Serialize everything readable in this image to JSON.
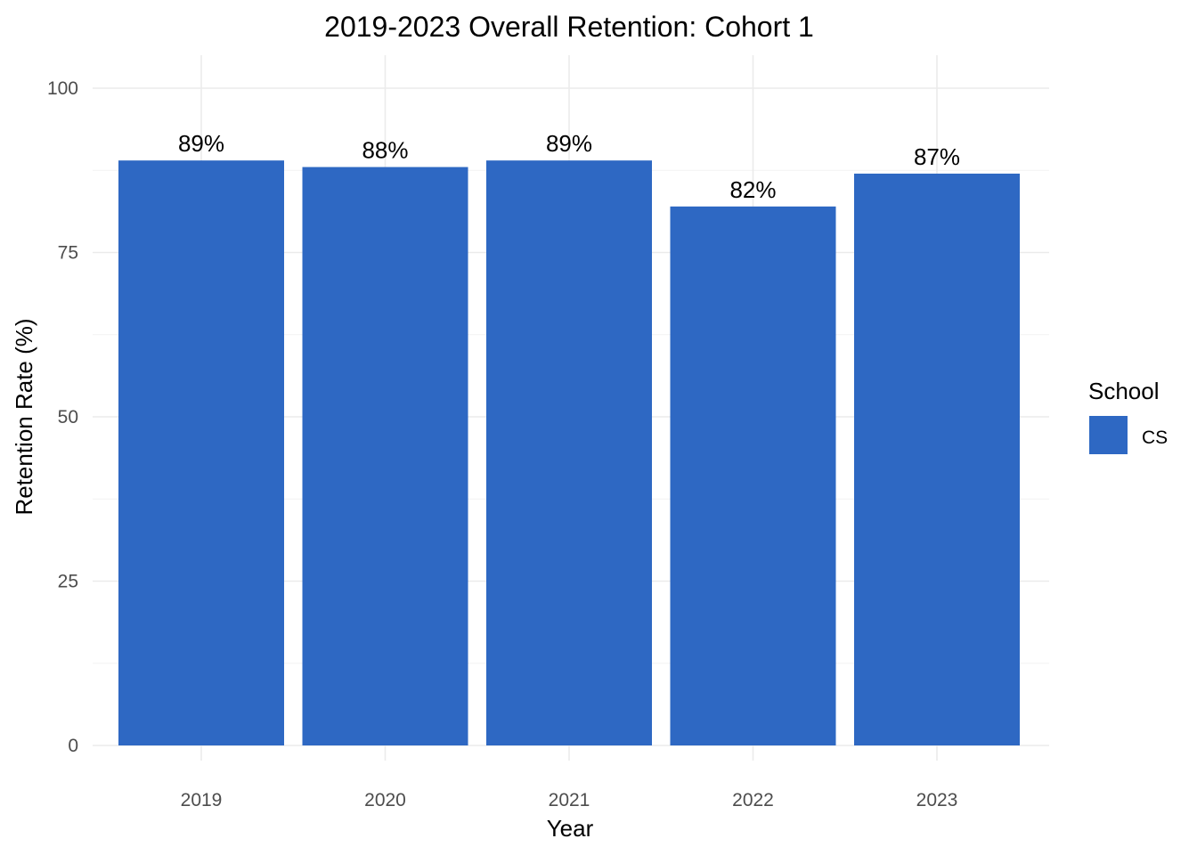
{
  "chart_data": {
    "type": "bar",
    "title": "2019-2023 Overall Retention: Cohort 1",
    "xlabel": "Year",
    "ylabel": "Retention Rate (%)",
    "categories": [
      "2019",
      "2020",
      "2021",
      "2022",
      "2023"
    ],
    "series": [
      {
        "name": "CS",
        "values": [
          89,
          88,
          89,
          82,
          87
        ],
        "data_labels": [
          "89%",
          "88%",
          "89%",
          "82%",
          "87%"
        ],
        "color": "#2E68C3"
      }
    ],
    "ylim": [
      0,
      100
    ],
    "yticks": [
      0,
      25,
      50,
      75,
      100
    ],
    "ytick_labels": [
      "0",
      "25",
      "50",
      "75",
      "100"
    ],
    "grid": true,
    "legend": {
      "title": "School",
      "placement": "right",
      "items": [
        "CS"
      ]
    }
  }
}
